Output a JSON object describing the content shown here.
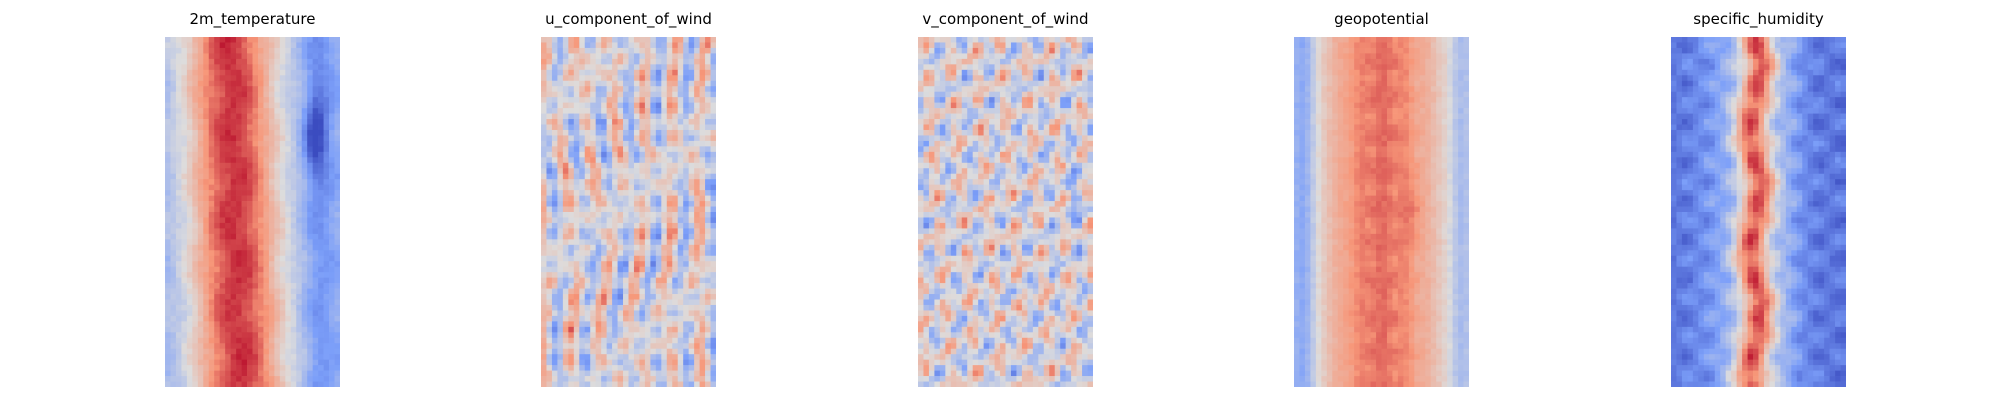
{
  "chart_data": [
    {
      "type": "heatmap",
      "title": "2m_temperature",
      "colormap": "coolwarm",
      "axis": "off",
      "grid": false
    },
    {
      "type": "heatmap",
      "title": "u_component_of_wind",
      "colormap": "coolwarm",
      "axis": "off",
      "grid": false
    },
    {
      "type": "heatmap",
      "title": "v_component_of_wind",
      "colormap": "coolwarm",
      "axis": "off",
      "grid": false
    },
    {
      "type": "heatmap",
      "title": "geopotential",
      "colormap": "coolwarm",
      "axis": "off",
      "grid": false
    },
    {
      "type": "heatmap",
      "title": "specific_humidity",
      "colormap": "coolwarm",
      "axis": "off",
      "grid": false
    }
  ]
}
